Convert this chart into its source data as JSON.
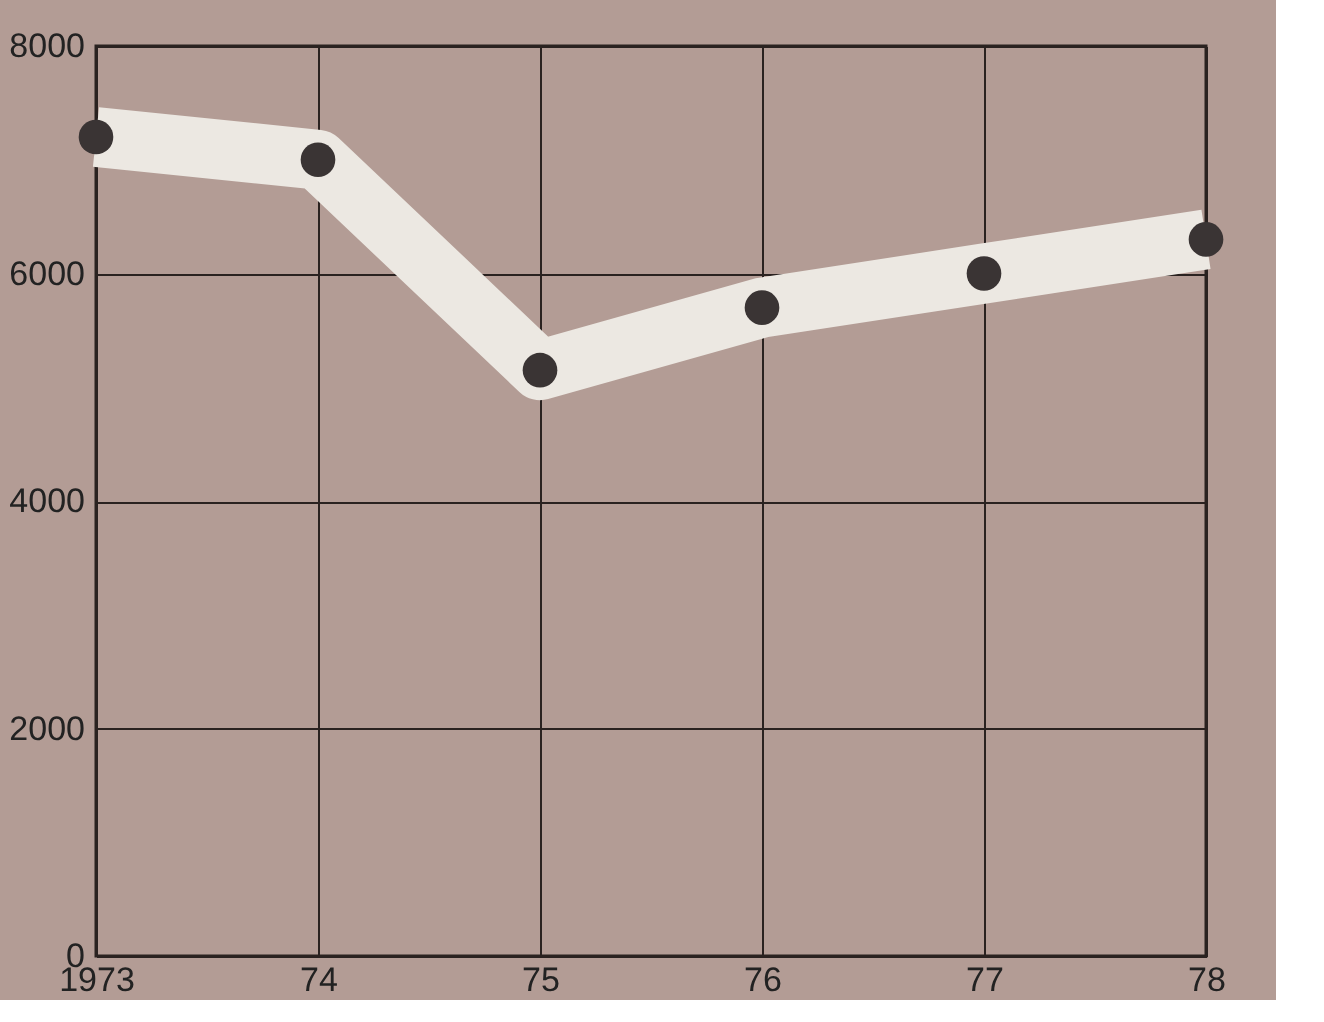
{
  "chart_data": {
    "type": "line",
    "categories": [
      "1973",
      "74",
      "75",
      "76",
      "77",
      "78"
    ],
    "series": [
      {
        "color": "#ece8e2",
        "values": [
          7200,
          7000,
          5150,
          5700,
          6000,
          6300
        ]
      }
    ],
    "ylim": [
      0,
      8000
    ],
    "yticks": [
      0,
      2000,
      4000,
      6000,
      8000
    ],
    "grid": true,
    "marker": "circle"
  }
}
